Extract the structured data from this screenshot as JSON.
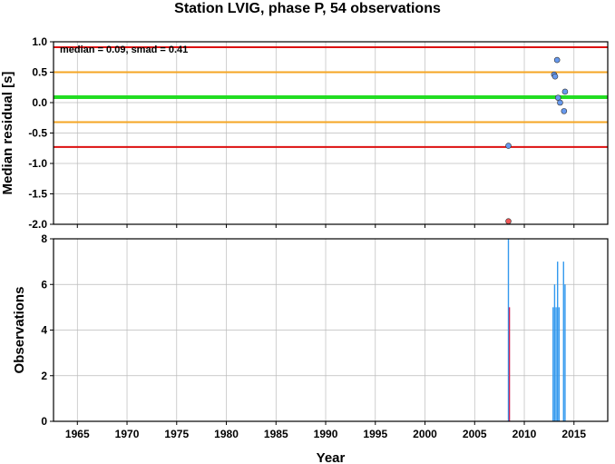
{
  "title": "Station LVIG, phase P, 54 observations",
  "colors": {
    "median_line": "#22dd22",
    "smad_line": "#f5a623",
    "limit_line": "#dd1111",
    "point_normal": "#6699ee",
    "point_outlier": "#ee5555",
    "hist_bar": "#3399ee",
    "hist_bar_highlight": "#cc2255",
    "grid": "#bbbbbb"
  },
  "chart_data": [
    {
      "type": "scatter",
      "ylabel": "Median residual [s]",
      "annotation": "median = 0.09, smad = 0.41",
      "xlim": [
        1962.6,
        2018.4
      ],
      "ylim": [
        -2.0,
        1.0
      ],
      "xticks": [
        1965,
        1970,
        1975,
        1980,
        1985,
        1990,
        1995,
        2000,
        2005,
        2010,
        2015
      ],
      "yticks": [
        1.0,
        0.5,
        0.0,
        -0.5,
        -1.0,
        -1.5,
        -2.0
      ],
      "ytick_labels": [
        "1.0",
        "0.5",
        "0.0",
        "-0.5",
        "-1.0",
        "-1.5",
        "-2.0"
      ],
      "grid": true,
      "hlines": [
        {
          "y": 0.91,
          "role": "limit"
        },
        {
          "y": 0.5,
          "role": "smad"
        },
        {
          "y": 0.09,
          "role": "median"
        },
        {
          "y": -0.32,
          "role": "smad"
        },
        {
          "y": -0.73,
          "role": "limit"
        }
      ],
      "points": [
        {
          "x": 2008.4,
          "y": -0.71,
          "outlier": false
        },
        {
          "x": 2008.4,
          "y": -1.95,
          "outlier": true
        },
        {
          "x": 2013.0,
          "y": 0.46,
          "outlier": false
        },
        {
          "x": 2013.1,
          "y": 0.43,
          "outlier": false
        },
        {
          "x": 2013.3,
          "y": 0.7,
          "outlier": false
        },
        {
          "x": 2013.4,
          "y": 0.08,
          "outlier": false
        },
        {
          "x": 2013.6,
          "y": 0.0,
          "outlier": false
        },
        {
          "x": 2014.0,
          "y": -0.14,
          "outlier": false
        },
        {
          "x": 2014.1,
          "y": 0.18,
          "outlier": false
        }
      ]
    },
    {
      "type": "bar",
      "xlabel": "Year",
      "ylabel": "Observations",
      "xlim": [
        1962.6,
        2018.4
      ],
      "ylim": [
        0,
        8
      ],
      "xticks": [
        1965,
        1970,
        1975,
        1980,
        1985,
        1990,
        1995,
        2000,
        2005,
        2010,
        2015
      ],
      "yticks": [
        0,
        2,
        4,
        6,
        8
      ],
      "grid": true,
      "bars": [
        {
          "x": 2008.4,
          "value": 8,
          "highlight": false
        },
        {
          "x": 2008.5,
          "value": 5,
          "highlight": true
        },
        {
          "x": 2012.9,
          "value": 5,
          "highlight": false
        },
        {
          "x": 2013.05,
          "value": 6,
          "highlight": false
        },
        {
          "x": 2013.2,
          "value": 5,
          "highlight": false
        },
        {
          "x": 2013.35,
          "value": 7,
          "highlight": false
        },
        {
          "x": 2013.5,
          "value": 5,
          "highlight": false
        },
        {
          "x": 2013.95,
          "value": 7,
          "highlight": false
        },
        {
          "x": 2014.1,
          "value": 6,
          "highlight": false
        }
      ]
    }
  ]
}
